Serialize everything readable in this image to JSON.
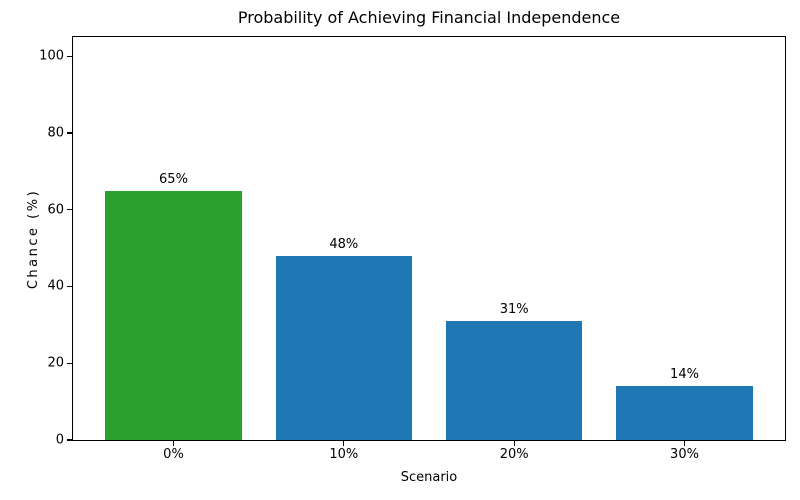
{
  "chart_data": {
    "type": "bar",
    "title": "Probability of Achieving Financial Independence",
    "xlabel": "Scenario",
    "ylabel": "Chance (%)",
    "categories": [
      "0%",
      "10%",
      "20%",
      "30%"
    ],
    "values": [
      65,
      48,
      31,
      14
    ],
    "bar_labels": [
      "65%",
      "48%",
      "31%",
      "14%"
    ],
    "bar_colors": [
      "#2ca02c",
      "#1f77b4",
      "#1f77b4",
      "#1f77b4"
    ],
    "yticks": [
      0,
      20,
      40,
      60,
      80,
      100
    ],
    "ylim": [
      0,
      105
    ],
    "grid": false,
    "legend_position": "none",
    "background_color": "#ffffff",
    "spine_color": "#000000"
  }
}
